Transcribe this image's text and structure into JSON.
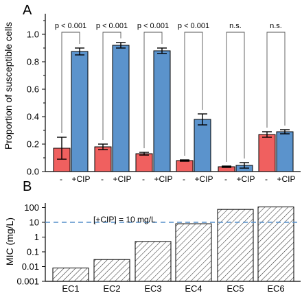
{
  "colors": {
    "minus_bar": "#f0605f",
    "cip_bar": "#5b93cc",
    "ref_line": "#5b93cc",
    "hatch": "#333333"
  },
  "panel_a": {
    "letter": "A",
    "ylabel": "Proportion of susceptible cells",
    "ytick_labels": [
      "0.0",
      "0.2",
      "0.4",
      "0.6",
      "0.8",
      "1.0"
    ],
    "group_labels": [
      {
        "minus": "-",
        "plus": "+CIP"
      },
      {
        "minus": "-",
        "plus": "+CIP"
      },
      {
        "minus": "-",
        "plus": "+CIP"
      },
      {
        "minus": "-",
        "plus": "+CIP"
      },
      {
        "minus": "-",
        "plus": "+CIP"
      },
      {
        "minus": "-",
        "plus": "+CIP"
      }
    ],
    "significance": [
      "p < 0.001",
      "p < 0.001",
      "p < 0.001",
      "p < 0.001",
      "n.s.",
      "n.s."
    ]
  },
  "panel_b": {
    "letter": "B",
    "ylabel": "MIC (mg/L)",
    "ytick_labels": [
      "0.001",
      "0.01",
      "0.1",
      "1",
      "10",
      "100"
    ],
    "categories": [
      "EC1",
      "EC2",
      "EC3",
      "EC4",
      "EC5",
      "EC6"
    ],
    "ref_label": "[+CIP] = 10 mg/L"
  },
  "chart_data": [
    {
      "type": "bar",
      "ylabel": "Proportion of susceptible cells",
      "ylim": [
        0,
        1.15
      ],
      "grid": false,
      "legend": "none",
      "group_count": 6,
      "series": [
        {
          "name": "-",
          "values": [
            0.17,
            0.18,
            0.13,
            0.08,
            0.035,
            0.27
          ],
          "errors": [
            0.08,
            0.02,
            0.01,
            0.005,
            0.005,
            0.02
          ]
        },
        {
          "name": "+CIP",
          "values": [
            0.875,
            0.92,
            0.88,
            0.38,
            0.045,
            0.29
          ],
          "errors": [
            0.025,
            0.02,
            0.02,
            0.04,
            0.02,
            0.015
          ]
        }
      ],
      "annotations": [
        "p < 0.001",
        "p < 0.001",
        "p < 0.001",
        "p < 0.001",
        "n.s.",
        "n.s."
      ]
    },
    {
      "type": "bar",
      "categories": [
        "EC1",
        "EC2",
        "EC3",
        "EC4",
        "EC5",
        "EC6"
      ],
      "values": [
        0.008,
        0.03,
        0.5,
        8,
        75,
        110
      ],
      "ylabel": "MIC (mg/L)",
      "ylim": [
        0.001,
        200
      ],
      "yscale": "log",
      "grid": false,
      "reference_line": {
        "y": 10,
        "label": "[+CIP] = 10 mg/L"
      }
    }
  ]
}
